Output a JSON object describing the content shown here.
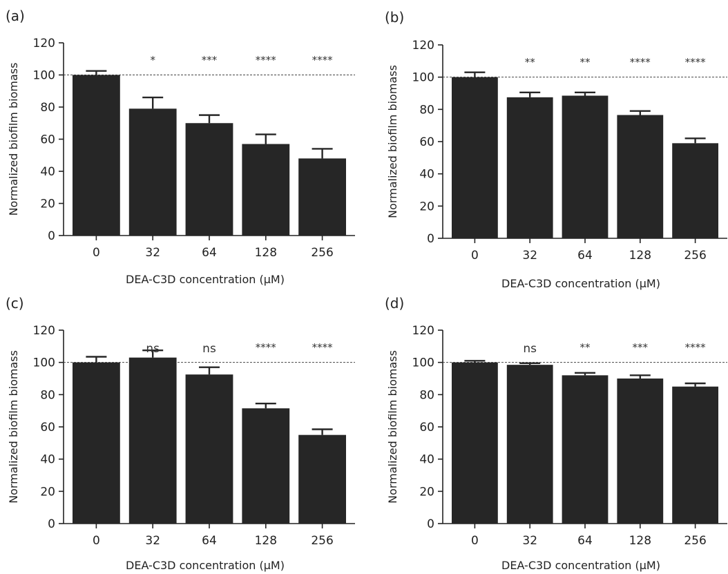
{
  "chart_data": [
    {
      "type": "bar",
      "panel": "(a)",
      "categories": [
        "0",
        "32",
        "64",
        "128",
        "256"
      ],
      "values": [
        100,
        79,
        70,
        57,
        48
      ],
      "errors": [
        2.5,
        7,
        5,
        6,
        6
      ],
      "significance": [
        "",
        "*",
        "***",
        "****",
        "****"
      ],
      "reference_line": 100,
      "xlabel": "DEA-C3D concentration (μM)",
      "ylabel": "Normalized biofilm biomass",
      "ylim": [
        0,
        120
      ],
      "yticks": [
        0,
        20,
        40,
        60,
        80,
        100,
        120
      ]
    },
    {
      "type": "bar",
      "panel": "(b)",
      "categories": [
        "0",
        "32",
        "64",
        "128",
        "256"
      ],
      "values": [
        100,
        87.5,
        88.5,
        76.5,
        59
      ],
      "errors": [
        3,
        3,
        2,
        2.5,
        3
      ],
      "significance": [
        "",
        "**",
        "**",
        "****",
        "****"
      ],
      "reference_line": 100,
      "xlabel": "DEA-C3D concentration (μM)",
      "ylabel": "Normalized biofilm biomass",
      "ylim": [
        0,
        120
      ],
      "yticks": [
        0,
        20,
        40,
        60,
        80,
        100,
        120
      ]
    },
    {
      "type": "bar",
      "panel": "(c)",
      "categories": [
        "0",
        "32",
        "64",
        "128",
        "256"
      ],
      "values": [
        100,
        103,
        92.5,
        71.5,
        55
      ],
      "errors": [
        3.5,
        4.5,
        4.5,
        3,
        3.5
      ],
      "significance": [
        "",
        "ns",
        "ns",
        "****",
        "****"
      ],
      "reference_line": 100,
      "xlabel": "DEA-C3D concentration (μM)",
      "ylabel": "Normalized biofilm biomass",
      "ylim": [
        0,
        120
      ],
      "yticks": [
        0,
        20,
        40,
        60,
        80,
        100,
        120
      ]
    },
    {
      "type": "bar",
      "panel": "(d)",
      "categories": [
        "0",
        "32",
        "64",
        "128",
        "256"
      ],
      "values": [
        100,
        98.5,
        92,
        90,
        85
      ],
      "errors": [
        1,
        1,
        1.5,
        2,
        2
      ],
      "significance": [
        "",
        "ns",
        "**",
        "***",
        "****"
      ],
      "reference_line": 100,
      "xlabel": "DEA-C3D concentration (μM)",
      "ylabel": "Normalized biofilm biomass",
      "ylim": [
        0,
        120
      ],
      "yticks": [
        0,
        20,
        40,
        60,
        80,
        100,
        120
      ]
    }
  ],
  "colors": {
    "bar": "#262626",
    "axis": "#222222",
    "reference_line": "#444444"
  }
}
